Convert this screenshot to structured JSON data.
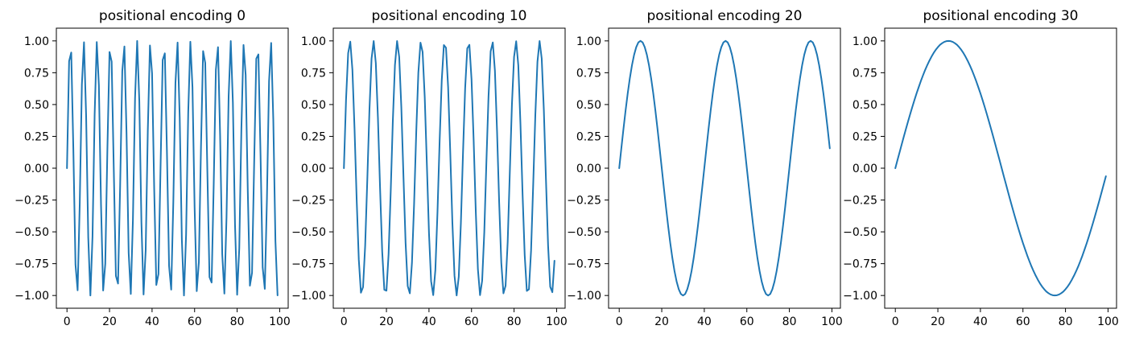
{
  "chart_data": [
    {
      "type": "line",
      "title": "positional encoding 0",
      "xlim": [
        -5,
        104
      ],
      "ylim": [
        -1.1,
        1.1
      ],
      "x_ticks": [
        0,
        20,
        40,
        60,
        80,
        100
      ],
      "x_tick_labels": [
        "0",
        "20",
        "40",
        "60",
        "80",
        "100"
      ],
      "y_ticks": [
        -1.0,
        -0.75,
        -0.5,
        -0.25,
        0.0,
        0.25,
        0.5,
        0.75,
        1.0
      ],
      "y_tick_labels": [
        "−1.00",
        "−0.75",
        "−0.50",
        "−0.25",
        "0.00",
        "0.25",
        "0.50",
        "0.75",
        "1.00"
      ],
      "series": [
        {
          "color": "#1f77b4",
          "x": [
            0,
            1,
            2,
            3,
            4,
            5,
            6,
            7,
            8,
            9,
            10,
            11,
            12,
            13,
            14,
            15,
            16,
            17,
            18,
            19,
            20,
            21,
            22,
            23,
            24,
            25,
            26,
            27,
            28,
            29,
            30,
            31,
            32,
            33,
            34,
            35,
            36,
            37,
            38,
            39,
            40,
            41,
            42,
            43,
            44,
            45,
            46,
            47,
            48,
            49,
            50,
            51,
            52,
            53,
            54,
            55,
            56,
            57,
            58,
            59,
            60,
            61,
            62,
            63,
            64,
            65,
            66,
            67,
            68,
            69,
            70,
            71,
            72,
            73,
            74,
            75,
            76,
            77,
            78,
            79,
            80,
            81,
            82,
            83,
            84,
            85,
            86,
            87,
            88,
            89,
            90,
            91,
            92,
            93,
            94,
            95,
            96,
            97,
            98,
            99
          ],
          "y": [
            0.0,
            0.841,
            0.909,
            0.141,
            -0.757,
            -0.959,
            -0.279,
            0.657,
            0.989,
            0.412,
            -0.544,
            -1.0,
            -0.537,
            0.42,
            0.991,
            0.65,
            -0.288,
            -0.961,
            -0.751,
            0.15,
            0.913,
            0.837,
            -0.009,
            -0.846,
            -0.906,
            -0.132,
            0.763,
            0.956,
            0.271,
            -0.664,
            -0.988,
            -0.404,
            0.551,
            1.0,
            0.529,
            -0.428,
            -0.992,
            -0.644,
            0.296,
            0.964,
            0.745,
            -0.159,
            -0.917,
            -0.832,
            0.018,
            0.851,
            0.902,
            0.124,
            -0.768,
            -0.954,
            -0.262,
            0.67,
            0.987,
            0.396,
            -0.559,
            -1.0,
            -0.522,
            0.436,
            0.993,
            0.637,
            -0.305,
            -0.966,
            -0.739,
            0.167,
            0.92,
            0.827,
            -0.027,
            -0.856,
            -0.898,
            -0.115,
            0.774,
            0.951,
            0.254,
            -0.677,
            -0.985,
            -0.388,
            0.566,
            0.999,
            0.514,
            -0.444,
            -0.994,
            -0.629,
            0.313,
            0.968,
            0.733,
            -0.176,
            -0.923,
            -0.822,
            0.036,
            0.86,
            0.894,
            0.106,
            -0.779,
            -0.948,
            -0.245,
            0.683,
            0.984,
            0.38,
            -0.573,
            -0.999
          ]
        }
      ]
    },
    {
      "type": "line",
      "title": "positional encoding 10",
      "xlim": [
        -5,
        104
      ],
      "ylim": [
        -1.1,
        1.1
      ],
      "x_ticks": [
        0,
        20,
        40,
        60,
        80,
        100
      ],
      "x_tick_labels": [
        "0",
        "20",
        "40",
        "60",
        "80",
        "100"
      ],
      "y_ticks": [
        -1.0,
        -0.75,
        -0.5,
        -0.25,
        0.0,
        0.25,
        0.5,
        0.75,
        1.0
      ],
      "y_tick_labels": [
        "−1.00",
        "−0.75",
        "−0.50",
        "−0.25",
        "0.00",
        "0.25",
        "0.50",
        "0.75",
        "1.00"
      ],
      "series": [
        {
          "color": "#1f77b4",
          "x": [
            0,
            1,
            2,
            3,
            4,
            5,
            6,
            7,
            8,
            9,
            10,
            11,
            12,
            13,
            14,
            15,
            16,
            17,
            18,
            19,
            20,
            21,
            22,
            23,
            24,
            25,
            26,
            27,
            28,
            29,
            30,
            31,
            32,
            33,
            34,
            35,
            36,
            37,
            38,
            39,
            40,
            41,
            42,
            43,
            44,
            45,
            46,
            47,
            48,
            49,
            50,
            51,
            52,
            53,
            54,
            55,
            56,
            57,
            58,
            59,
            60,
            61,
            62,
            63,
            64,
            65,
            66,
            67,
            68,
            69,
            70,
            71,
            72,
            73,
            74,
            75,
            76,
            77,
            78,
            79,
            80,
            81,
            82,
            83,
            84,
            85,
            86,
            87,
            88,
            89,
            90,
            91,
            92,
            93,
            94,
            95,
            96,
            97,
            98,
            99
          ],
          "y": [
            0.0,
            0.536,
            0.904,
            0.994,
            0.773,
            0.309,
            -0.245,
            -0.718,
            -0.978,
            -0.934,
            -0.608,
            -0.09,
            0.456,
            0.861,
            0.999,
            0.826,
            0.392,
            -0.157,
            -0.654,
            -0.955,
            -0.962,
            -0.678,
            -0.187,
            0.369,
            0.81,
            0.999,
            0.874,
            0.478,
            -0.064,
            -0.586,
            -0.926,
            -0.983,
            -0.742,
            -0.282,
            0.279,
            0.751,
            0.986,
            0.913,
            0.56,
            0.032,
            -0.51,
            -0.888,
            -0.997,
            -0.8,
            -0.343,
            0.212,
            0.69,
            0.967,
            0.946,
            0.636,
            0.125,
            -0.426,
            -0.846,
            -1.0,
            -0.853,
            -0.43,
            0.121,
            0.628,
            0.941,
            0.969,
            0.7,
            0.219,
            -0.339,
            -0.794,
            -0.997,
            -0.884,
            -0.503,
            0.053,
            0.567,
            0.918,
            0.988,
            0.765,
            0.29,
            -0.271,
            -0.743,
            -0.983,
            -0.924,
            -0.581,
            -0.034,
            0.5,
            0.875,
            0.997,
            0.807,
            0.35,
            -0.203,
            -0.683,
            -0.964,
            -0.951,
            -0.646,
            -0.127,
            0.418,
            0.837,
            0.999,
            0.861,
            0.457,
            -0.091,
            -0.608,
            -0.932,
            -0.974,
            -0.727
          ]
        }
      ]
    },
    {
      "type": "line",
      "title": "positional encoding 20",
      "xlim": [
        -5,
        104
      ],
      "ylim": [
        -1.1,
        1.1
      ],
      "x_ticks": [
        0,
        20,
        40,
        60,
        80,
        100
      ],
      "x_tick_labels": [
        "0",
        "20",
        "40",
        "60",
        "80",
        "100"
      ],
      "y_ticks": [
        -1.0,
        -0.75,
        -0.5,
        -0.25,
        0.0,
        0.25,
        0.5,
        0.75,
        1.0
      ],
      "y_tick_labels": [
        "−1.00",
        "−0.75",
        "−0.50",
        "−0.25",
        "0.00",
        "0.25",
        "0.50",
        "0.75",
        "1.00"
      ],
      "series": [
        {
          "color": "#1f77b4",
          "x": [
            0,
            1,
            2,
            3,
            4,
            5,
            6,
            7,
            8,
            9,
            10,
            11,
            12,
            13,
            14,
            15,
            16,
            17,
            18,
            19,
            20,
            21,
            22,
            23,
            24,
            25,
            26,
            27,
            28,
            29,
            30,
            31,
            32,
            33,
            34,
            35,
            36,
            37,
            38,
            39,
            40,
            41,
            42,
            43,
            44,
            45,
            46,
            47,
            48,
            49,
            50,
            51,
            52,
            53,
            54,
            55,
            56,
            57,
            58,
            59,
            60,
            61,
            62,
            63,
            64,
            65,
            66,
            67,
            68,
            69,
            70,
            71,
            72,
            73,
            74,
            75,
            76,
            77,
            78,
            79,
            80,
            81,
            82,
            83,
            84,
            85,
            86,
            87,
            88,
            89,
            90,
            91,
            92,
            93,
            94,
            95,
            96,
            97,
            98,
            99
          ],
          "y": [
            0.0,
            0.156,
            0.309,
            0.454,
            0.588,
            0.707,
            0.809,
            0.891,
            0.951,
            0.988,
            1.0,
            0.988,
            0.951,
            0.891,
            0.809,
            0.707,
            0.588,
            0.454,
            0.309,
            0.156,
            0.0,
            -0.156,
            -0.309,
            -0.454,
            -0.588,
            -0.707,
            -0.809,
            -0.891,
            -0.951,
            -0.988,
            -1.0,
            -0.988,
            -0.951,
            -0.891,
            -0.809,
            -0.707,
            -0.588,
            -0.454,
            -0.309,
            -0.156,
            0.0,
            0.156,
            0.309,
            0.454,
            0.588,
            0.707,
            0.809,
            0.891,
            0.951,
            0.988,
            1.0,
            0.988,
            0.951,
            0.891,
            0.809,
            0.707,
            0.588,
            0.454,
            0.309,
            0.156,
            0.0,
            -0.156,
            -0.309,
            -0.454,
            -0.588,
            -0.707,
            -0.809,
            -0.891,
            -0.951,
            -0.988,
            -1.0,
            -0.988,
            -0.951,
            -0.891,
            -0.809,
            -0.707,
            -0.588,
            -0.454,
            -0.309,
            -0.156,
            0.0,
            0.156,
            0.309,
            0.454,
            0.588,
            0.707,
            0.809,
            0.891,
            0.951,
            0.988,
            1.0,
            0.988,
            0.951,
            0.891,
            0.809,
            0.707,
            0.588,
            0.454,
            0.309,
            0.156
          ]
        }
      ]
    },
    {
      "type": "line",
      "title": "positional encoding 30",
      "xlim": [
        -5,
        104
      ],
      "ylim": [
        -1.1,
        1.1
      ],
      "x_ticks": [
        0,
        20,
        40,
        60,
        80,
        100
      ],
      "x_tick_labels": [
        "0",
        "20",
        "40",
        "60",
        "80",
        "100"
      ],
      "y_ticks": [
        -1.0,
        -0.75,
        -0.5,
        -0.25,
        0.0,
        0.25,
        0.5,
        0.75,
        1.0
      ],
      "y_tick_labels": [
        "−1.00",
        "−0.75",
        "−0.50",
        "−0.25",
        "0.00",
        "0.25",
        "0.50",
        "0.75",
        "1.00"
      ],
      "series": [
        {
          "color": "#1f77b4",
          "x": [
            0,
            1,
            2,
            3,
            4,
            5,
            6,
            7,
            8,
            9,
            10,
            11,
            12,
            13,
            14,
            15,
            16,
            17,
            18,
            19,
            20,
            21,
            22,
            23,
            24,
            25,
            26,
            27,
            28,
            29,
            30,
            31,
            32,
            33,
            34,
            35,
            36,
            37,
            38,
            39,
            40,
            41,
            42,
            43,
            44,
            45,
            46,
            47,
            48,
            49,
            50,
            51,
            52,
            53,
            54,
            55,
            56,
            57,
            58,
            59,
            60,
            61,
            62,
            63,
            64,
            65,
            66,
            67,
            68,
            69,
            70,
            71,
            72,
            73,
            74,
            75,
            76,
            77,
            78,
            79,
            80,
            81,
            82,
            83,
            84,
            85,
            86,
            87,
            88,
            89,
            90,
            91,
            92,
            93,
            94,
            95,
            96,
            97,
            98,
            99
          ],
          "y": [
            0.0,
            0.063,
            0.125,
            0.187,
            0.249,
            0.309,
            0.368,
            0.426,
            0.482,
            0.536,
            0.588,
            0.637,
            0.685,
            0.729,
            0.771,
            0.809,
            0.844,
            0.876,
            0.905,
            0.93,
            0.951,
            0.969,
            0.982,
            0.992,
            0.998,
            1.0,
            0.998,
            0.992,
            0.982,
            0.969,
            0.951,
            0.93,
            0.905,
            0.876,
            0.844,
            0.809,
            0.771,
            0.729,
            0.685,
            0.637,
            0.588,
            0.536,
            0.482,
            0.426,
            0.368,
            0.309,
            0.249,
            0.187,
            0.125,
            0.063,
            0.0,
            -0.063,
            -0.125,
            -0.187,
            -0.249,
            -0.309,
            -0.368,
            -0.426,
            -0.482,
            -0.536,
            -0.588,
            -0.637,
            -0.685,
            -0.729,
            -0.771,
            -0.809,
            -0.844,
            -0.876,
            -0.905,
            -0.93,
            -0.951,
            -0.969,
            -0.982,
            -0.992,
            -0.998,
            -1.0,
            -0.998,
            -0.992,
            -0.982,
            -0.969,
            -0.951,
            -0.93,
            -0.905,
            -0.876,
            -0.844,
            -0.809,
            -0.771,
            -0.729,
            -0.685,
            -0.637,
            -0.588,
            -0.536,
            -0.482,
            -0.426,
            -0.368,
            -0.309,
            -0.249,
            -0.187,
            -0.125,
            -0.063
          ]
        }
      ]
    }
  ]
}
